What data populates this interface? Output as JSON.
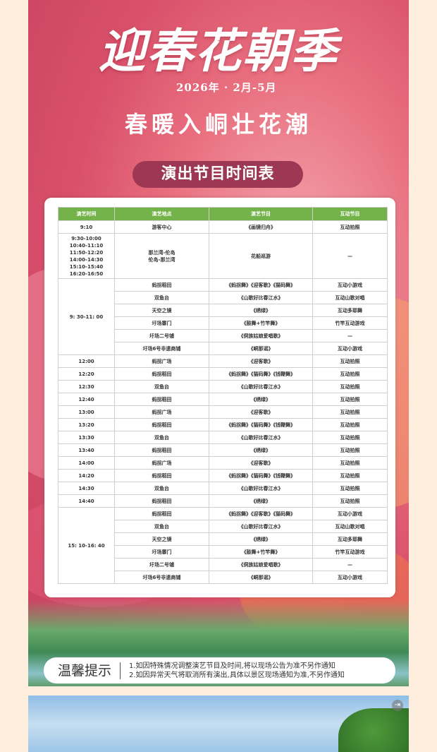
{
  "poster": {
    "title": "迎春花朝季",
    "date": "2026年 · 2月-5月",
    "subtitle": "春暖入峒壮花潮",
    "schedule_title": "演出节目时间表",
    "colors": {
      "header_green": "#74b34a",
      "pill": "#9c3853",
      "background": "#fdeedd"
    }
  },
  "table": {
    "headers": [
      "演艺时间",
      "演艺地点",
      "演艺节目",
      "互动节目"
    ],
    "rows": [
      {
        "time": "9:10",
        "place": "游客中心",
        "show": "《画镜归舟》",
        "interactive": "互动拍照"
      },
      {
        "time": "9:30-10:00\n10:40-11:10\n11:50-12:20\n14:00-14:30\n15:10-15:40\n16:20-16:50",
        "place": "那兰湾-伦岛\n伦岛-那兰湾",
        "show": "花船巡游",
        "interactive": "—"
      }
    ],
    "group_morning": {
      "time": "9: 30-11: 00",
      "rows": [
        {
          "place": "蚂拐稻田",
          "show": "《蚂拐舞》《迎客歌》《猫码舞》",
          "interactive": "互动小游戏"
        },
        {
          "place": "双鱼台",
          "show": "《山歌好比春江水》",
          "interactive": "互动山歌对唱"
        },
        {
          "place": "天空之镜",
          "show": "《绣绿》",
          "interactive": "互动多耶舞"
        },
        {
          "place": "圩场寨门",
          "show": "《鼓舞+竹竿舞》",
          "interactive": "竹竿互动游戏"
        },
        {
          "place": "圩场二号铺",
          "show": "《侗族姑娘爱唱歌》",
          "interactive": "—"
        },
        {
          "place": "圩场6号非遗商铺",
          "show": "《峒那谣》",
          "interactive": "互动小游戏"
        }
      ]
    },
    "timed_rows": [
      {
        "time": "12:00",
        "place": "蚂拐广场",
        "show": "《迎客歌》",
        "interactive": "互动拍照"
      },
      {
        "time": "12:20",
        "place": "蚂拐稻田",
        "show": "《蚂拐舞》《猫码舞》《钱鞭舞》",
        "interactive": "互动拍照"
      },
      {
        "time": "12:30",
        "place": "双鱼台",
        "show": "《山歌好比春江水》",
        "interactive": "互动拍照"
      },
      {
        "time": "12:40",
        "place": "蚂拐稻田",
        "show": "《绣绿》",
        "interactive": "互动拍照"
      },
      {
        "time": "13:00",
        "place": "蚂拐广场",
        "show": "《迎客歌》",
        "interactive": "互动拍照"
      },
      {
        "time": "13:20",
        "place": "蚂拐稻田",
        "show": "《蚂拐舞》《猫码舞》《钱鞭舞》",
        "interactive": "互动拍照"
      },
      {
        "time": "13:30",
        "place": "双鱼台",
        "show": "《山歌好比春江水》",
        "interactive": "互动拍照"
      },
      {
        "time": "13:40",
        "place": "蚂拐稻田",
        "show": "《绣绿》",
        "interactive": "互动拍照"
      },
      {
        "time": "14:00",
        "place": "蚂拐广场",
        "show": "《迎客歌》",
        "interactive": "互动拍照"
      },
      {
        "time": "14:20",
        "place": "蚂拐稻田",
        "show": "《蚂拐舞》《猫码舞》《钱鞭舞》",
        "interactive": "互动拍照"
      },
      {
        "time": "14:30",
        "place": "双鱼台",
        "show": "《山歌好比春江水》",
        "interactive": "互动拍照"
      },
      {
        "time": "14:40",
        "place": "蚂拐稻田",
        "show": "《绣绿》",
        "interactive": "互动拍照"
      }
    ],
    "group_afternoon": {
      "time": "15: 10-16: 40",
      "rows": [
        {
          "place": "蚂拐稻田",
          "show": "《蚂拐舞》《迎客歌》《猫码舞》",
          "interactive": "互动小游戏"
        },
        {
          "place": "双鱼台",
          "show": "《山歌好比春江水》",
          "interactive": "互动山歌对唱"
        },
        {
          "place": "天空之镜",
          "show": "《绣绿》",
          "interactive": "互动多耶舞"
        },
        {
          "place": "圩场寨门",
          "show": "《鼓舞+竹竿舞》",
          "interactive": "竹竿互动游戏"
        },
        {
          "place": "圩场二号铺",
          "show": "《侗族姑娘爱唱歌》",
          "interactive": "—"
        },
        {
          "place": "圩场6号非遗商铺",
          "show": "《峒那谣》",
          "interactive": "互动小游戏"
        }
      ]
    }
  },
  "tips": {
    "title": "温馨提示",
    "lines": [
      "1.如因特殊情况调整演艺节目及时间,将以现场公告为准不另作通知",
      "2.如因异常天气将取消所有演出,具体以景区现场通知为准,不另作通知"
    ]
  },
  "photo": {
    "exit_icon": "exit-fullscreen-icon"
  }
}
